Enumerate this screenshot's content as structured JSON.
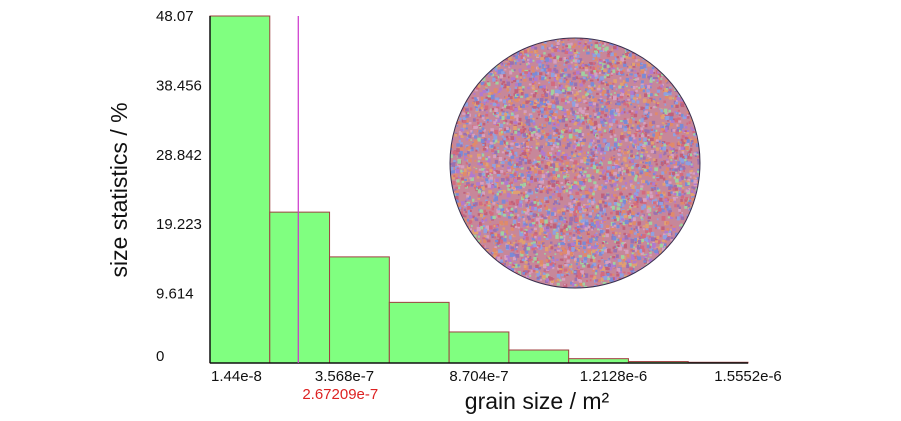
{
  "chart_data": {
    "type": "bar",
    "title": "",
    "xlabel": "grain size / m²",
    "ylabel": "size statistics / %",
    "x_ticks": [
      "1.44e-8",
      "3.568e-7",
      "8.704e-7",
      "1.2128e-6",
      "1.5552e-6"
    ],
    "y_ticks": [
      "0",
      "9.614",
      "19.223",
      "28.842",
      "38.456",
      "48.07"
    ],
    "ylim": [
      0,
      48.07
    ],
    "xlim": [
      1.44e-08,
      1.5552e-06
    ],
    "bin_edges": [
      1.44e-08,
      1.856e-07,
      3.568e-07,
      5.28e-07,
      6.992e-07,
      8.704e-07,
      1.0416e-06,
      1.2128e-06,
      1.384e-06,
      1.5552e-06
    ],
    "values": [
      48.07,
      20.9,
      14.7,
      8.4,
      4.3,
      1.8,
      0.6,
      0.2,
      0.1
    ],
    "marker": {
      "value": 2.67209e-07,
      "label": "2.67209e-7",
      "color": "#cc33cc",
      "label_color": "#dd2222"
    },
    "grid": false,
    "legend": "none",
    "colors": {
      "bar_fill": "#80ff80",
      "bar_stroke": "#a04040",
      "axis": "#111111"
    }
  },
  "inset": {
    "name": "grain-map",
    "colors": [
      "#d46a7e",
      "#b07ad0",
      "#7a8ad6",
      "#e08a6a",
      "#c0607a",
      "#8fa0e0",
      "#e0a070",
      "#a0d0a0",
      "#9a70b0",
      "#d6a0c0"
    ]
  }
}
